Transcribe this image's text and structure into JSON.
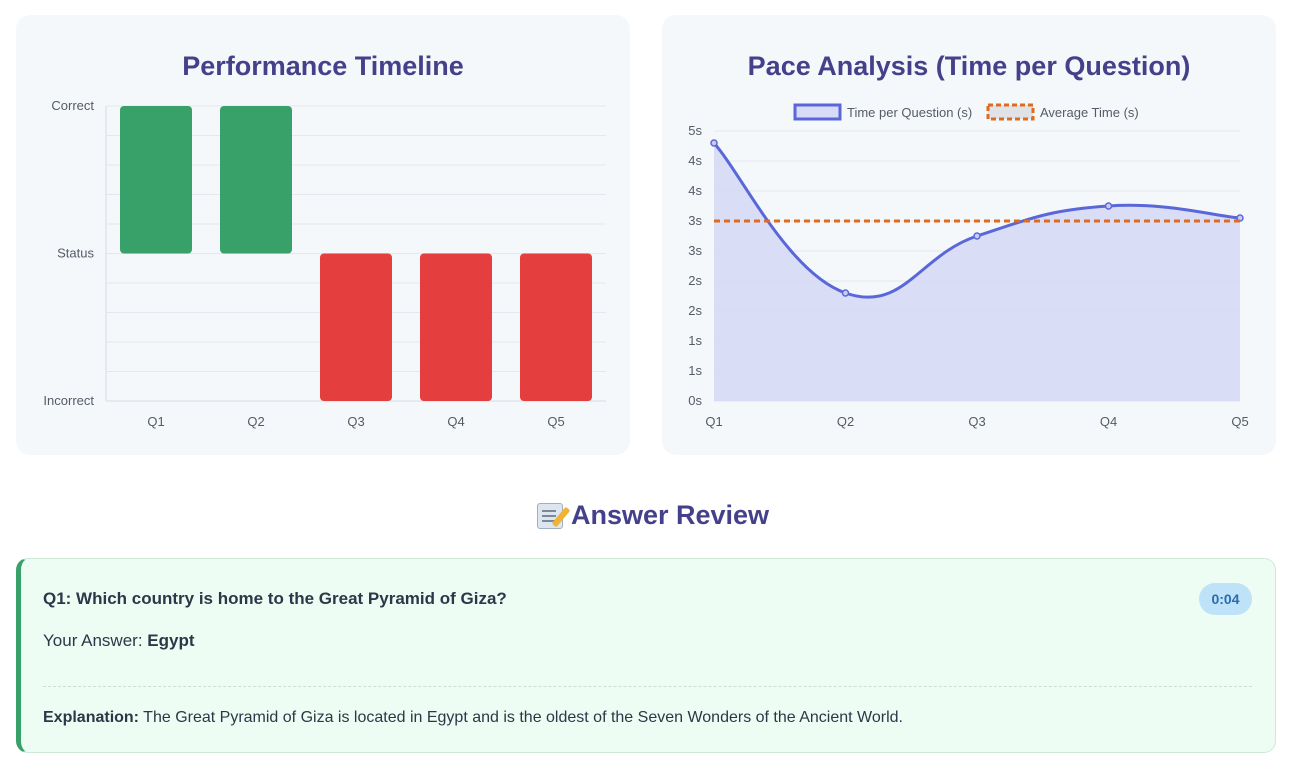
{
  "performance_card": {
    "title": "Performance Timeline"
  },
  "pace_card": {
    "title": "Pace Analysis (Time per Question)"
  },
  "colors": {
    "correct": "#38a169",
    "incorrect": "#e53e3e",
    "line": "#5a67d8",
    "line_fill": "#d7dbf5",
    "average": "#dd6b20",
    "title": "#45408a"
  },
  "chart_data": [
    {
      "type": "bar",
      "title": "Performance Timeline",
      "categories": [
        "Q1",
        "Q2",
        "Q3",
        "Q4",
        "Q5"
      ],
      "y_tick_labels": [
        "Incorrect",
        "Status",
        "Correct"
      ],
      "values": [
        "Correct",
        "Correct",
        "Incorrect",
        "Incorrect",
        "Incorrect"
      ],
      "grid": true,
      "legend": "none"
    },
    {
      "type": "line",
      "title": "Pace Analysis (Time per Question)",
      "categories": [
        "Q1",
        "Q2",
        "Q3",
        "Q4",
        "Q5"
      ],
      "y_tick_labels": [
        "0s",
        "1s",
        "1s",
        "2s",
        "2s",
        "3s",
        "3s",
        "4s",
        "4s",
        "5s"
      ],
      "ylim": [
        0,
        4.5
      ],
      "series": [
        {
          "name": "Time per Question (s)",
          "values": [
            4.3,
            1.8,
            2.75,
            3.25,
            3.05
          ],
          "style": "smooth-filled"
        },
        {
          "name": "Average Time (s)",
          "values": [
            3.0,
            3.0,
            3.0,
            3.0,
            3.0
          ],
          "style": "dashed"
        }
      ],
      "grid": true,
      "legend": "top-center"
    }
  ],
  "review": {
    "heading": "Answer Review",
    "heading_icon": "memo-icon",
    "items": [
      {
        "question": "Q1: Which country is home to the Great Pyramid of Giza?",
        "time": "0:04",
        "answer_label": "Your Answer:",
        "answer": "Egypt",
        "explanation_label": "Explanation:",
        "explanation": "The Great Pyramid of Giza is located in Egypt and is the oldest of the Seven Wonders of the Ancient World.",
        "status": "correct"
      }
    ]
  }
}
